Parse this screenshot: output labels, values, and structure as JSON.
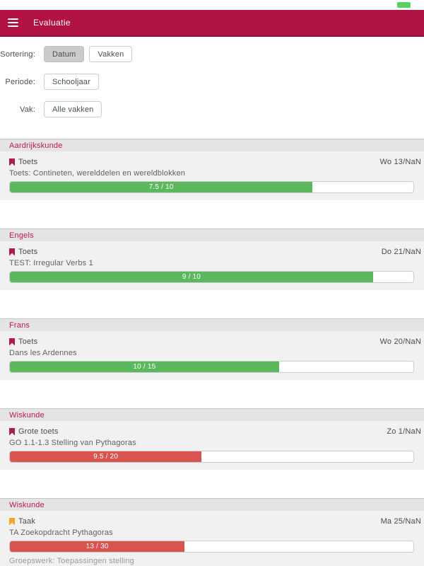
{
  "status_bar": {
    "battery_icon": "battery-indicator",
    "battery_color": "#57d161"
  },
  "app_bar": {
    "title": "Evaluatie",
    "bg_color": "#b01243"
  },
  "filters": {
    "rows": [
      {
        "label": "Sortering:",
        "buttons": [
          {
            "label": "Datum",
            "selected": true
          },
          {
            "label": "Vakken",
            "selected": false
          }
        ]
      },
      {
        "label": "Periode:",
        "buttons": [
          {
            "label": "Schooljaar",
            "selected": false
          }
        ]
      },
      {
        "label": "Vak:",
        "buttons": [
          {
            "label": "Alle vakken",
            "selected": false
          }
        ]
      }
    ]
  },
  "colors": {
    "pass_bar": "#5cb85c",
    "fail_bar": "#d9534f",
    "test_bookmark": "#ad1e42",
    "task_bookmark": "#f5a623"
  },
  "sections": [
    {
      "subject": "Aardrijkskunde",
      "row": {
        "type": "Toets",
        "icon": "bookmark-icon",
        "icon_color": "#ad1e42",
        "date": "Wo 13/NaN",
        "description": "Toets: Contineten, werelddelen en wereldblokken",
        "score": {
          "label": "7.5 / 10",
          "value": 7.5,
          "max": 10,
          "percent": 75,
          "color": "#5cb85c"
        }
      }
    },
    {
      "subject": "Engels",
      "row": {
        "type": "Toets",
        "icon": "bookmark-icon",
        "icon_color": "#ad1e42",
        "date": "Do 21/NaN",
        "description": "TEST: Irregular Verbs 1",
        "score": {
          "label": "9 / 10",
          "value": 9,
          "max": 10,
          "percent": 90,
          "color": "#5cb85c"
        }
      }
    },
    {
      "subject": "Frans",
      "row": {
        "type": "Toets",
        "icon": "bookmark-icon",
        "icon_color": "#ad1e42",
        "date": "Wo 20/NaN",
        "description": "Dans les Ardennes",
        "score": {
          "label": "10 / 15",
          "value": 10,
          "max": 15,
          "percent": 66.7,
          "color": "#5cb85c"
        }
      }
    },
    {
      "subject": "Wiskunde",
      "row": {
        "type": "Grote toets",
        "icon": "bookmark-icon",
        "icon_color": "#ad1e42",
        "date": "Zo 1/NaN",
        "description": "GO 1.1-1.3 Stelling van Pythagoras",
        "score": {
          "label": "9.5 / 20",
          "value": 9.5,
          "max": 20,
          "percent": 47.5,
          "color": "#d9534f"
        }
      }
    },
    {
      "subject": "Wiskunde",
      "row": {
        "type": "Taak",
        "icon": "bookmark-icon",
        "icon_color": "#f5a623",
        "date": "Ma 25/NaN",
        "description": "TA Zoekopdracht Pythagoras",
        "score": {
          "label": "13 / 30",
          "value": 13,
          "max": 30,
          "percent": 43.3,
          "color": "#d9534f"
        }
      },
      "partial_next_text": "Groepswerk: Toepassingen stelling"
    }
  ]
}
